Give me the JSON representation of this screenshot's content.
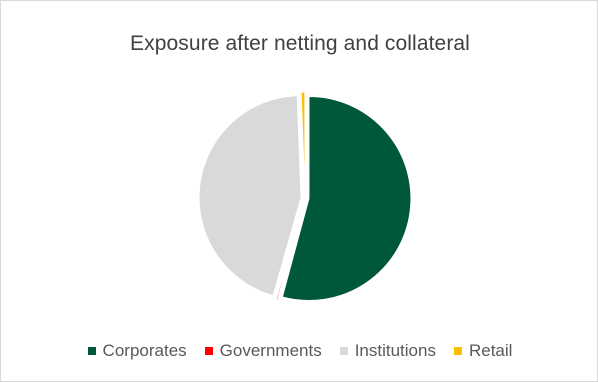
{
  "chart_data": {
    "type": "pie",
    "title": "Exposure after netting and collateral",
    "categories": [
      "Corporates",
      "Governments",
      "Institutions",
      "Retail"
    ],
    "values": [
      54.2,
      0.2,
      45.0,
      0.6
    ],
    "colors": [
      "#00583a",
      "#ff0000",
      "#d9d9d9",
      "#ffc000"
    ],
    "legend_position": "bottom",
    "exploded": true
  }
}
